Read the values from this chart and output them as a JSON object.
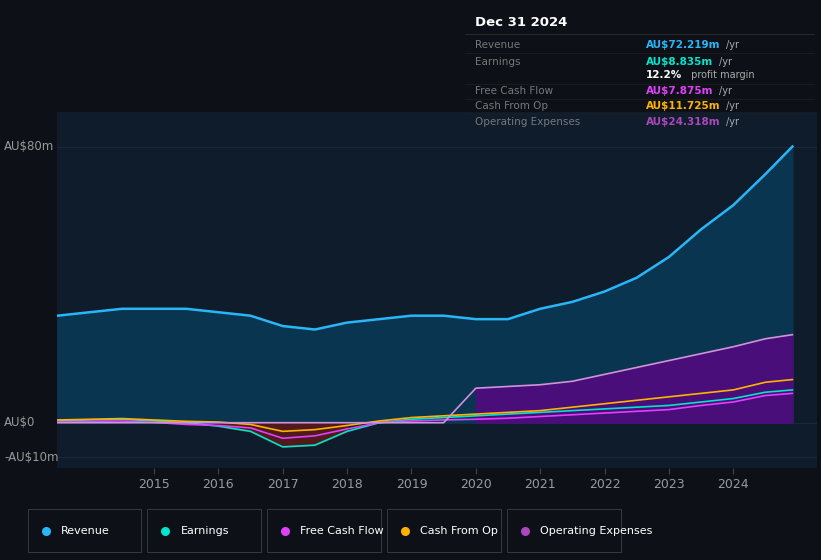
{
  "background_color": "#0d1117",
  "plot_bg_color": "#0e1c2c",
  "title_box": {
    "date": "Dec 31 2024",
    "rows": [
      {
        "label": "Revenue",
        "value": "AU$72.219m",
        "unit": "/yr",
        "value_color": "#29b6f6"
      },
      {
        "label": "Earnings",
        "value": "AU$8.835m",
        "unit": "/yr",
        "value_color": "#00e5cc"
      },
      {
        "label": "",
        "value": "12.2%",
        "unit": " profit margin",
        "value_color": "#ffffff"
      },
      {
        "label": "Free Cash Flow",
        "value": "AU$7.875m",
        "unit": "/yr",
        "value_color": "#e040fb"
      },
      {
        "label": "Cash From Op",
        "value": "AU$11.725m",
        "unit": "/yr",
        "value_color": "#ffb300"
      },
      {
        "label": "Operating Expenses",
        "value": "AU$24.318m",
        "unit": "/yr",
        "value_color": "#ab47bc"
      }
    ]
  },
  "ylim": [
    -13,
    90
  ],
  "ytick_labels": [
    "AU$80m",
    "AU$0",
    "-AU$10m"
  ],
  "ytick_values": [
    80,
    0,
    -10
  ],
  "years": [
    2013.5,
    2014.0,
    2014.5,
    2015.0,
    2015.5,
    2016.0,
    2016.5,
    2017.0,
    2017.5,
    2018.0,
    2018.5,
    2019.0,
    2019.5,
    2020.0,
    2020.5,
    2021.0,
    2021.5,
    2022.0,
    2022.5,
    2023.0,
    2023.5,
    2024.0,
    2024.5,
    2024.92
  ],
  "revenue": [
    31,
    32,
    33,
    33,
    33,
    32,
    31,
    28,
    27,
    29,
    30,
    31,
    31,
    30,
    30,
    33,
    35,
    38,
    42,
    48,
    56,
    63,
    72,
    80
  ],
  "earnings": [
    0.5,
    0.8,
    1.0,
    0.5,
    0.0,
    -1.0,
    -2.5,
    -7.0,
    -6.5,
    -2.5,
    0.0,
    1.0,
    1.5,
    2.0,
    2.5,
    3.0,
    3.5,
    4.0,
    4.5,
    5.0,
    6.0,
    7.0,
    8.835,
    9.5
  ],
  "free_cash_flow": [
    0.2,
    0.4,
    0.5,
    0.1,
    -0.5,
    -0.8,
    -1.5,
    -4.5,
    -3.8,
    -1.8,
    0.0,
    0.5,
    0.8,
    1.0,
    1.3,
    1.8,
    2.3,
    2.8,
    3.3,
    3.8,
    5.0,
    6.0,
    7.875,
    8.5
  ],
  "cash_from_op": [
    0.8,
    1.0,
    1.2,
    0.8,
    0.4,
    0.2,
    -0.5,
    -2.5,
    -2.0,
    -0.8,
    0.5,
    1.5,
    2.0,
    2.5,
    3.0,
    3.5,
    4.5,
    5.5,
    6.5,
    7.5,
    8.5,
    9.5,
    11.725,
    12.5
  ],
  "op_expenses": [
    0,
    0,
    0,
    0,
    0,
    0,
    0,
    0,
    0,
    0,
    0,
    0,
    0,
    10.0,
    10.5,
    11.0,
    12.0,
    14.0,
    16.0,
    18.0,
    20.0,
    22.0,
    24.318,
    25.5
  ],
  "colors": {
    "revenue_line": "#29b6f6",
    "revenue_fill": "#0a3550",
    "earnings_line": "#00e5cc",
    "neg_earnings_fill": "#5c1a1a",
    "free_cash_flow_line": "#e040fb",
    "cash_from_op_line": "#ffb300",
    "op_expenses_line": "#ce93d8",
    "op_expenses_fill": "#4a0e7a"
  },
  "legend": [
    {
      "label": "Revenue",
      "color": "#29b6f6"
    },
    {
      "label": "Earnings",
      "color": "#00e5cc"
    },
    {
      "label": "Free Cash Flow",
      "color": "#e040fb"
    },
    {
      "label": "Cash From Op",
      "color": "#ffb300"
    },
    {
      "label": "Operating Expenses",
      "color": "#ab47bc"
    }
  ],
  "xticks": [
    2015,
    2016,
    2017,
    2018,
    2019,
    2020,
    2021,
    2022,
    2023,
    2024
  ],
  "xlim": [
    2013.5,
    2025.3
  ],
  "grid_color": "#1a2a3a",
  "text_color": "#999999"
}
